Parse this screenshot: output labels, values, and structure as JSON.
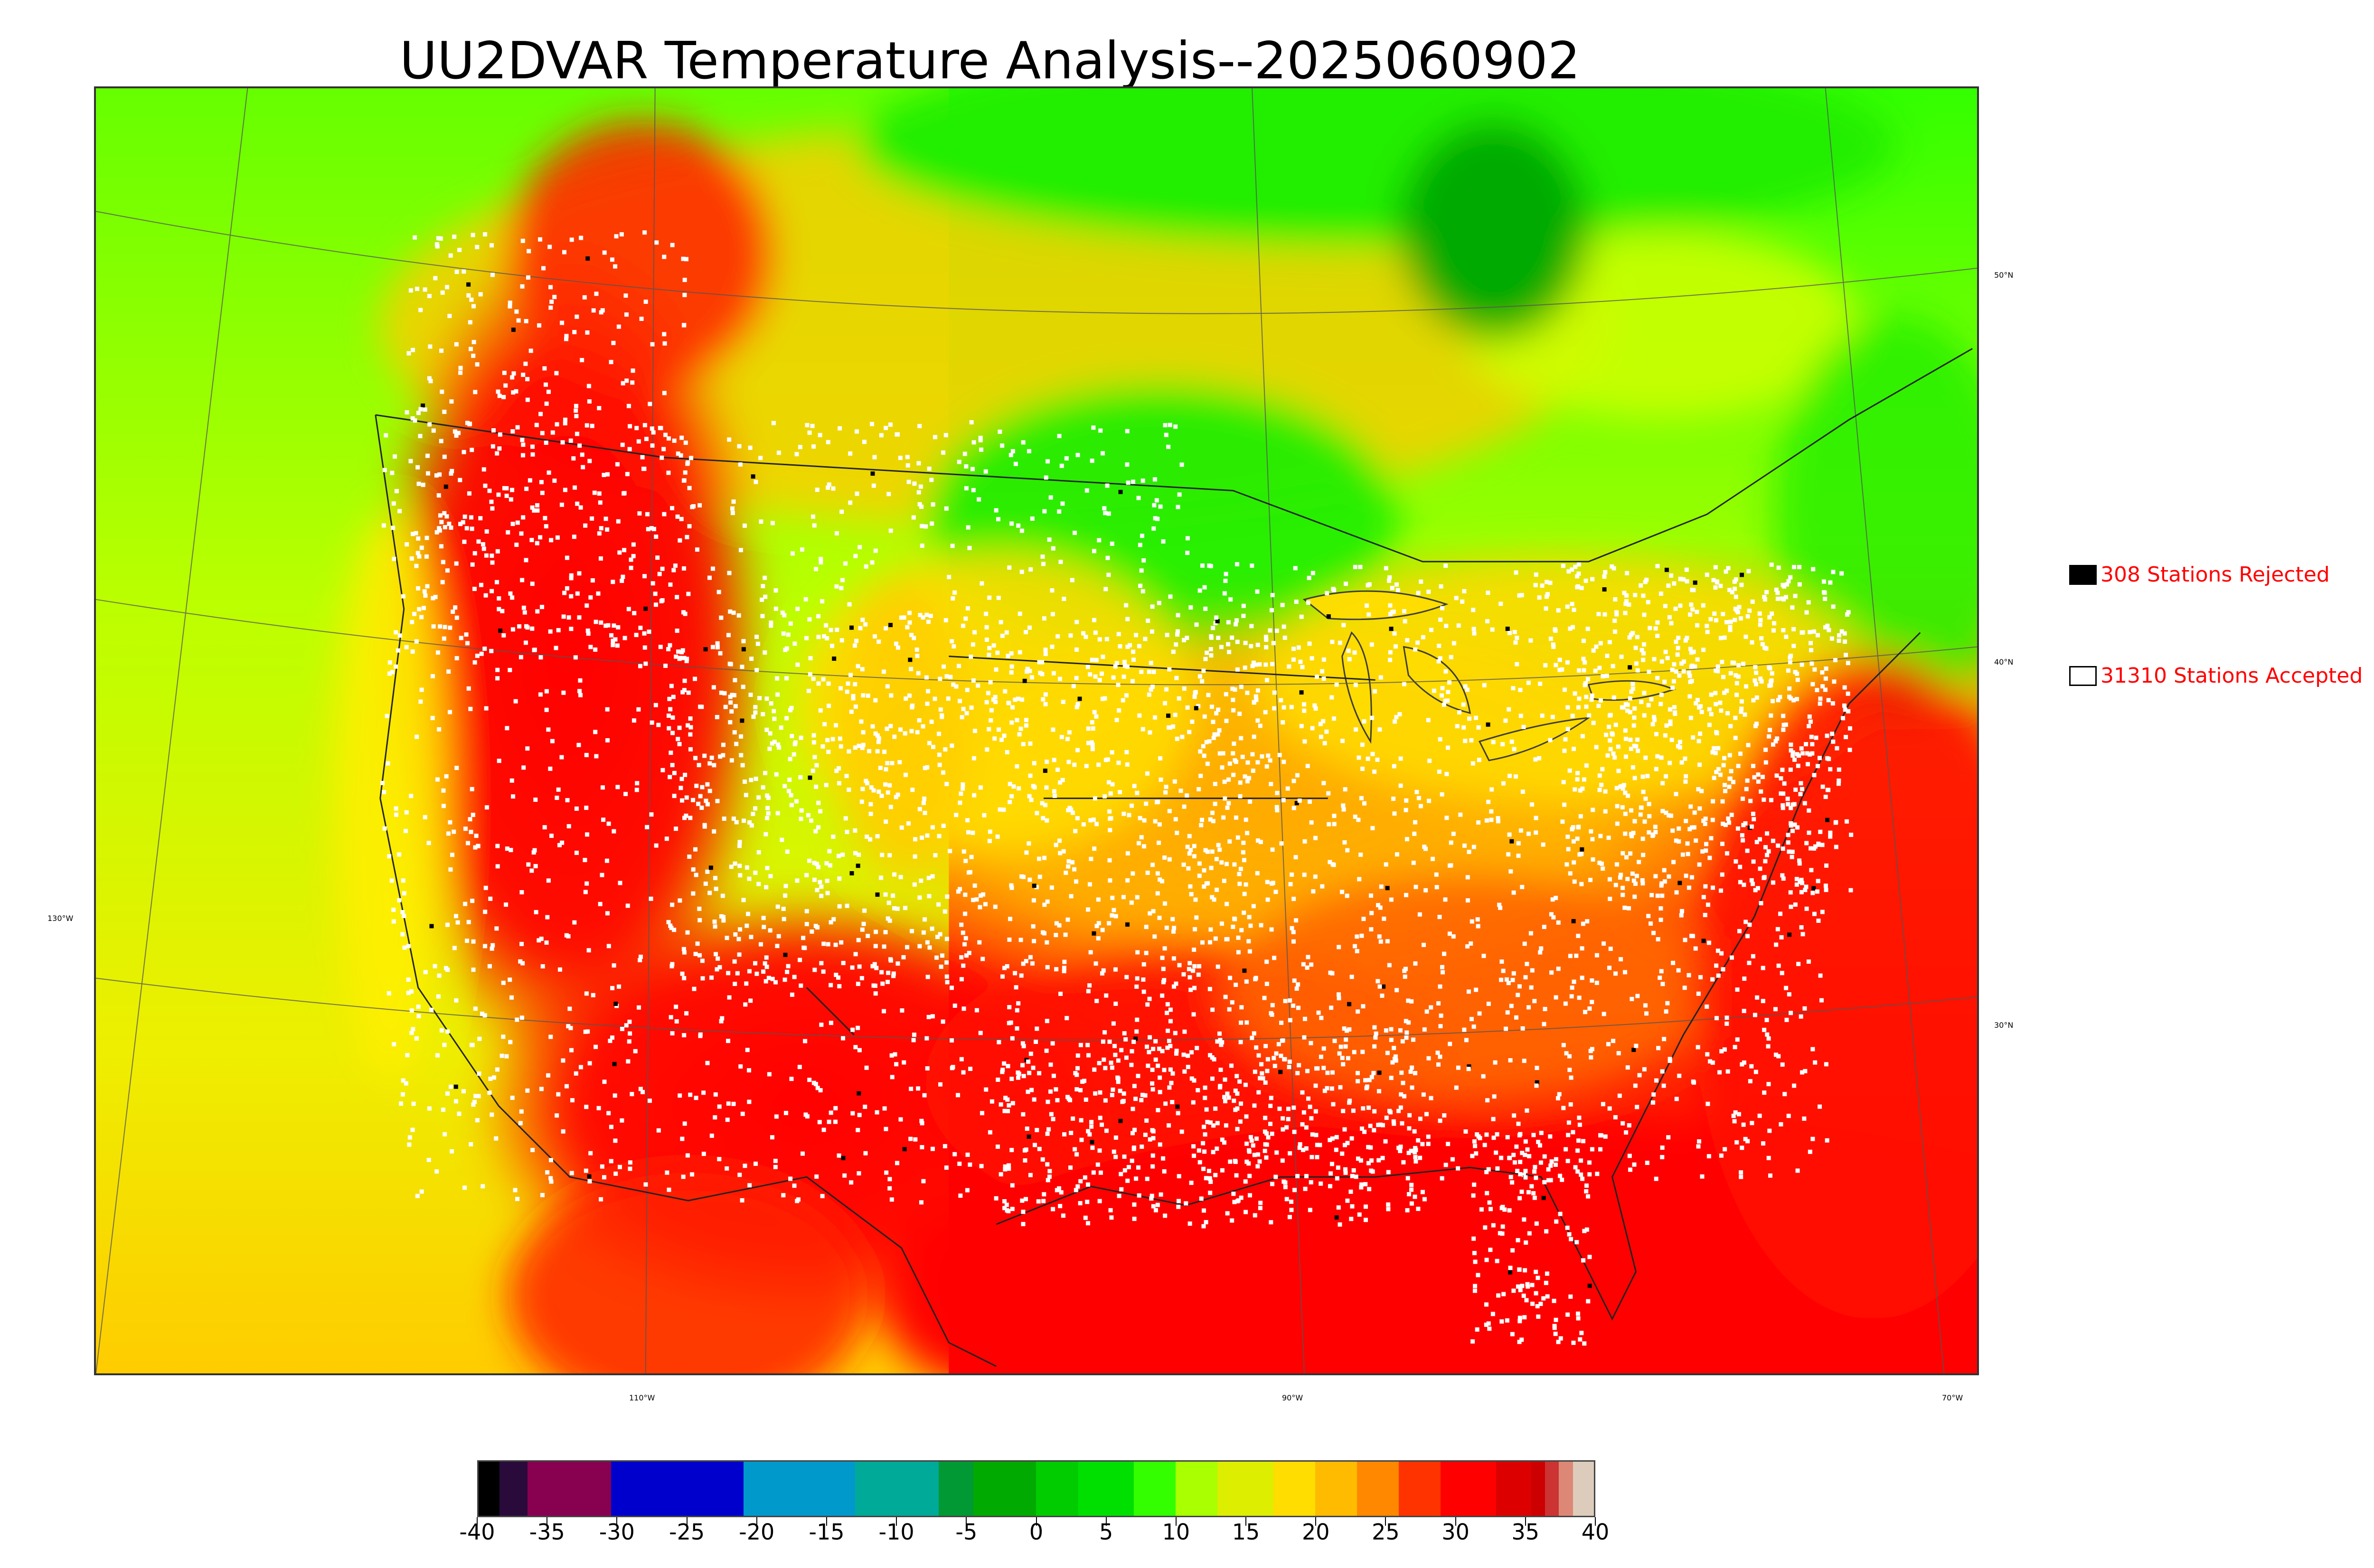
{
  "title": "UU2DVAR Temperature Analysis--2025060902",
  "map": {
    "lon_labels": [
      "130°W",
      "110°W",
      "90°W",
      "70°W"
    ],
    "lat_labels": [
      "50°N",
      "40°N",
      "30°N"
    ],
    "colors": {
      "hot": "#ff0000",
      "warm": "#ff9a00",
      "mild": "#ffcc00",
      "cool": "#aaff00",
      "green": "#00e000",
      "lake": "#00aa00",
      "station": "#ffffff",
      "rejected": "#000000"
    }
  },
  "legend": {
    "rejected_label": "308 Stations Rejected",
    "accepted_label": "31310 Stations Accepted",
    "rejected_count": 308,
    "accepted_count": 31310,
    "text_color": "#ff0000"
  },
  "colorbar": {
    "min": -40,
    "max": 40,
    "tick_labels": [
      "-40",
      "-35",
      "-30",
      "-25",
      "-20",
      "-15",
      "-10",
      "-5",
      "0",
      "5",
      "10",
      "15",
      "20",
      "25",
      "30",
      "35",
      "40"
    ],
    "segments": [
      {
        "from": -40,
        "to": -38.5,
        "color": "#000000"
      },
      {
        "from": -38.5,
        "to": -36.5,
        "color": "#2a0a3a"
      },
      {
        "from": -36.5,
        "to": -30.5,
        "color": "#880050"
      },
      {
        "from": -30.5,
        "to": -21,
        "color": "#0000cc"
      },
      {
        "from": -21,
        "to": -13,
        "color": "#0099cc"
      },
      {
        "from": -13,
        "to": -7,
        "color": "#00aa99"
      },
      {
        "from": -7,
        "to": -4.5,
        "color": "#009933"
      },
      {
        "from": -4.5,
        "to": 0,
        "color": "#00aa00"
      },
      {
        "from": 0,
        "to": 3,
        "color": "#00cc00"
      },
      {
        "from": 3,
        "to": 7,
        "color": "#00e000"
      },
      {
        "from": 7,
        "to": 10,
        "color": "#33ff00"
      },
      {
        "from": 10,
        "to": 13,
        "color": "#aaff00"
      },
      {
        "from": 13,
        "to": 17,
        "color": "#ddee00"
      },
      {
        "from": 17,
        "to": 20,
        "color": "#ffdd00"
      },
      {
        "from": 20,
        "to": 23,
        "color": "#ffbb00"
      },
      {
        "from": 23,
        "to": 26,
        "color": "#ff8800"
      },
      {
        "from": 26,
        "to": 29,
        "color": "#ff3300"
      },
      {
        "from": 29,
        "to": 33,
        "color": "#ff0000"
      },
      {
        "from": 33,
        "to": 35.5,
        "color": "#dd0000"
      },
      {
        "from": 35.5,
        "to": 36.5,
        "color": "#cc0000"
      },
      {
        "from": 36.5,
        "to": 37.5,
        "color": "#cc3333"
      },
      {
        "from": 37.5,
        "to": 38.5,
        "color": "#dd8877"
      },
      {
        "from": 38.5,
        "to": 40,
        "color": "#ddccbb"
      }
    ]
  }
}
